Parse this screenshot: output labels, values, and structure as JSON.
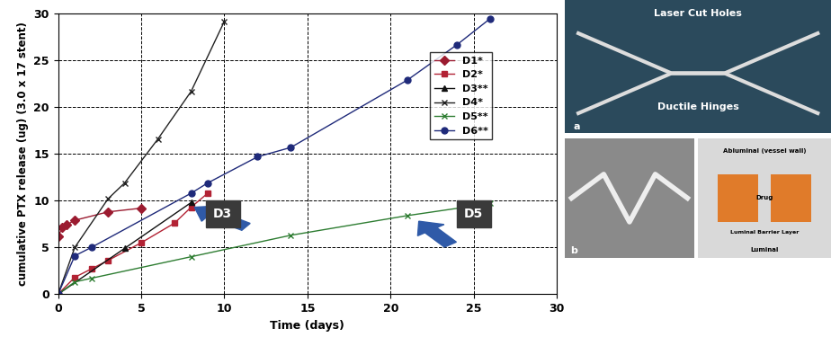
{
  "chart_data": {
    "type": "line",
    "x_label": "Time (days)",
    "y_label": "cumulative PTX release (ug) (3.0 x 17 stent)",
    "xlim": [
      0,
      30
    ],
    "xticks": [
      0,
      5,
      10,
      15,
      20,
      25,
      30
    ],
    "ylim": [
      0,
      30
    ],
    "yticks": [
      0,
      5,
      10,
      15,
      20,
      25,
      30
    ],
    "grid": true,
    "legend": "upper right",
    "series": [
      {
        "name": "D1*",
        "color": "#9b1b30",
        "marker": "diamond",
        "line_style": "solid",
        "x": [
          0,
          0.25,
          0.5,
          1,
          3,
          5
        ],
        "values": [
          6.2,
          7.1,
          7.4,
          7.9,
          8.8,
          9.2
        ]
      },
      {
        "name": "D2*",
        "color": "#b22234",
        "marker": "square",
        "line_style": "solid",
        "x": [
          0,
          1,
          2,
          3,
          5,
          7,
          8,
          9
        ],
        "values": [
          0,
          1.8,
          2.7,
          3.6,
          5.5,
          7.6,
          9.3,
          10.8
        ]
      },
      {
        "name": "D3**",
        "color": "#111111",
        "marker": "triangle",
        "line_style": "solid",
        "x": [
          0,
          4,
          8
        ],
        "values": [
          0,
          4.9,
          9.8
        ]
      },
      {
        "name": "D4*",
        "color": "#222222",
        "marker": "x",
        "line_style": "solid",
        "x": [
          0,
          1,
          3,
          4,
          6,
          8,
          10
        ],
        "values": [
          0,
          5.0,
          10.2,
          11.9,
          16.6,
          21.7,
          29.2
        ]
      },
      {
        "name": "D5**",
        "color": "#2e7d32",
        "marker": "x",
        "line_style": "solid",
        "x": [
          0,
          1,
          2,
          8,
          14,
          21,
          26
        ],
        "values": [
          0,
          1.3,
          1.7,
          4.0,
          6.3,
          8.4,
          9.7
        ]
      },
      {
        "name": "D6**",
        "color": "#1f2a7a",
        "marker": "circle",
        "line_style": "solid",
        "x": [
          0,
          1,
          2,
          8,
          9,
          12,
          14,
          21,
          24,
          26
        ],
        "values": [
          0,
          4.1,
          5.0,
          10.8,
          11.9,
          14.7,
          15.7,
          22.9,
          26.7,
          29.5
        ]
      }
    ],
    "annotations": [
      "D3",
      "D5"
    ]
  },
  "photos": [
    {
      "panel": "a",
      "labels": [
        "Laser Cut Holes",
        "Ductile Hinges"
      ]
    },
    {
      "panel": "b",
      "labels": []
    },
    {
      "labels": [
        "Abluminal (vessel wall)",
        "Drug",
        "Luminal Barrier Layer",
        "Luminal"
      ]
    }
  ]
}
